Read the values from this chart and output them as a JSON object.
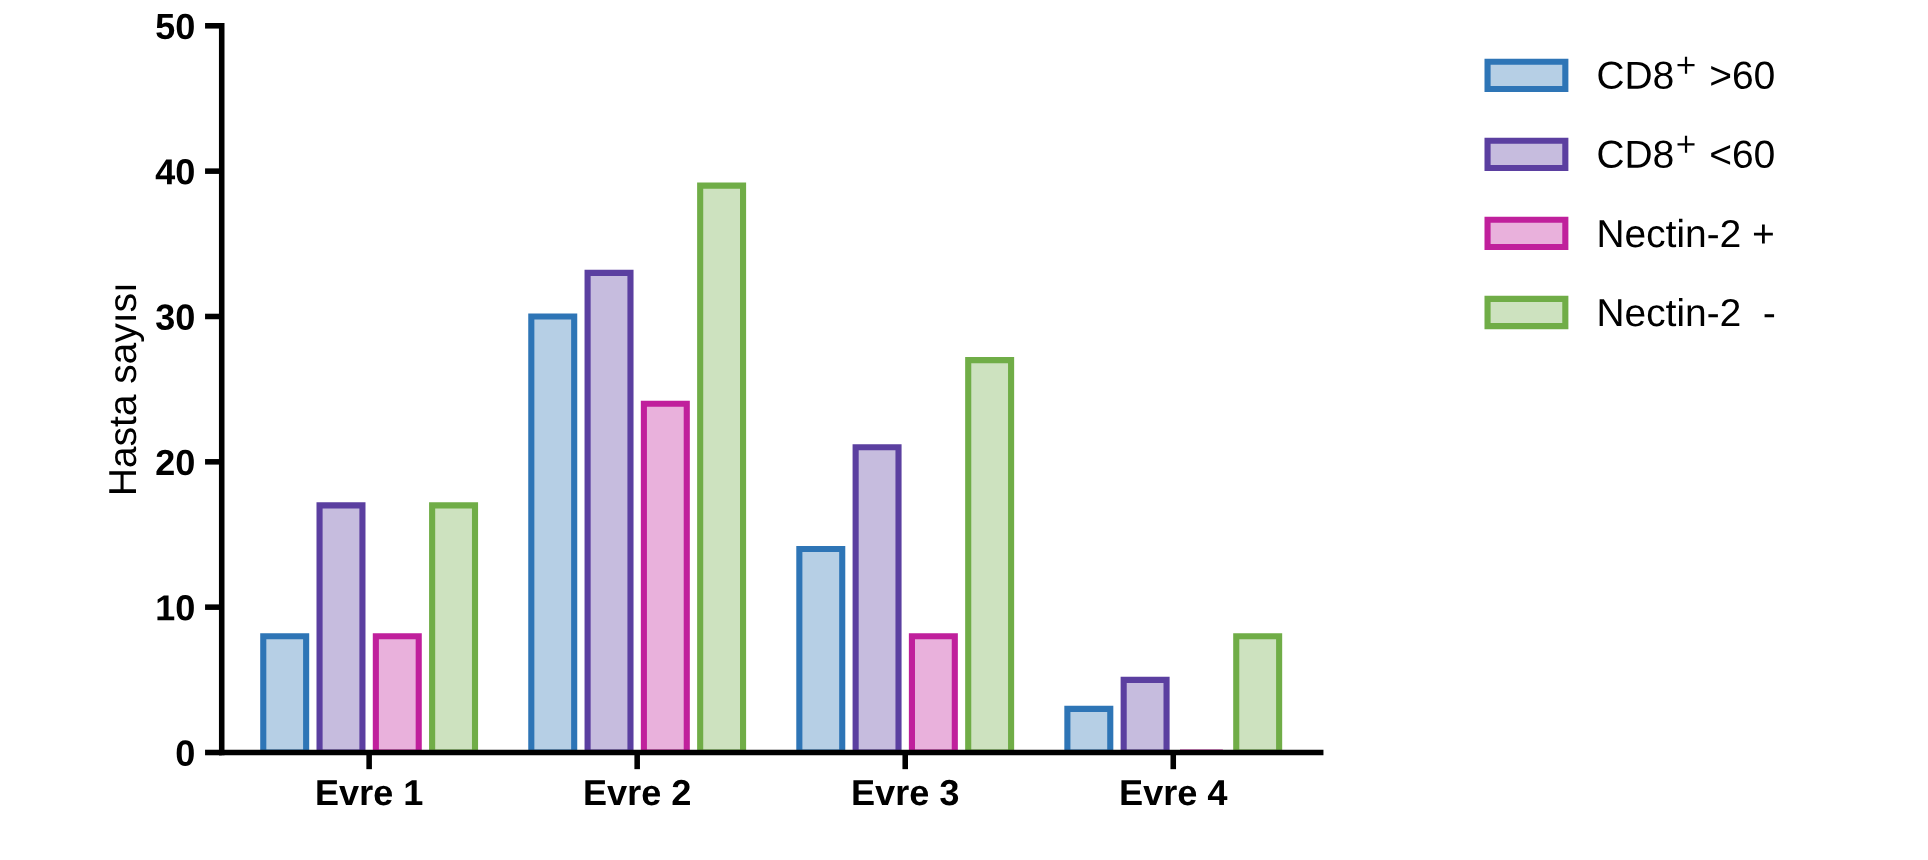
{
  "chart_data": {
    "type": "bar",
    "ylabel": "Hasta sayısı",
    "categories": [
      "Evre 1",
      "Evre 2",
      "Evre 3",
      "Evre 4"
    ],
    "series": [
      {
        "name": "CD8$^{+}$ >60",
        "color": "#2e75b6",
        "values": [
          8,
          30,
          14,
          3
        ]
      },
      {
        "name": "CD8$^{+}$ <60",
        "color": "#5b3fa0",
        "values": [
          17,
          33,
          21,
          5
        ]
      },
      {
        "name": "Nectin-2 +",
        "color": "#c0209c",
        "values": [
          8,
          24,
          8,
          0
        ]
      },
      {
        "name": "Nectin-2  -",
        "color": "#70ad47",
        "values": [
          17,
          39,
          27,
          8
        ]
      }
    ],
    "ylim": [
      0,
      50
    ],
    "yticks": [
      0,
      10,
      20,
      30,
      40,
      50
    ],
    "grid": false,
    "legend": "right"
  }
}
